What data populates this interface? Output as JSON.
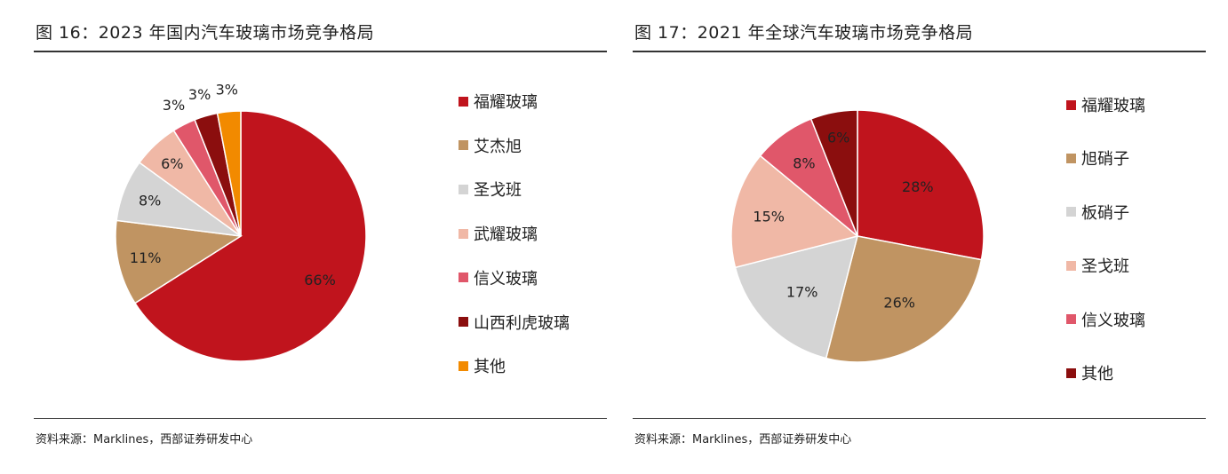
{
  "colors": {
    "red": "#c0141d",
    "tan": "#c09462",
    "gray": "#d4d4d4",
    "pink": "#f0b8a6",
    "rose": "#e0576a",
    "darkred": "#8b0e0e",
    "orange": "#f28a00"
  },
  "chart_data": [
    {
      "type": "pie",
      "title": "图 16：2023 年国内汽车玻璃市场竞争格局",
      "source": "资料来源：Marklines，西部证券研发中心",
      "legend_position": "right",
      "slices": [
        {
          "name": "福耀玻璃",
          "value": 66,
          "label": "66%",
          "color": "#c0141d",
          "label_color": "#222"
        },
        {
          "name": "艾杰旭",
          "value": 11,
          "label": "11%",
          "color": "#c09462",
          "label_color": "#222"
        },
        {
          "name": "圣戈班",
          "value": 8,
          "label": "8%",
          "color": "#d4d4d4",
          "label_color": "#222"
        },
        {
          "name": "武耀玻璃",
          "value": 6,
          "label": "6%",
          "color": "#f0b8a6",
          "label_color": "#222"
        },
        {
          "name": "信义玻璃",
          "value": 3,
          "label": "3%",
          "color": "#e0576a",
          "label_color": "#222"
        },
        {
          "name": "山西利虎玻璃",
          "value": 3,
          "label": "3%",
          "color": "#8b0e0e",
          "label_color": "#222"
        },
        {
          "name": "其他",
          "value": 3,
          "label": "3%",
          "color": "#f28a00",
          "label_color": "#222"
        }
      ]
    },
    {
      "type": "pie",
      "title": "图 17：2021 年全球汽车玻璃市场竞争格局",
      "source": "资料来源：Marklines，西部证券研发中心",
      "legend_position": "right",
      "slices": [
        {
          "name": "福耀玻璃",
          "value": 28,
          "label": "28%",
          "color": "#c0141d",
          "label_color": "#222"
        },
        {
          "name": "旭硝子",
          "value": 26,
          "label": "26%",
          "color": "#c09462",
          "label_color": "#222"
        },
        {
          "name": "板硝子",
          "value": 17,
          "label": "17%",
          "color": "#d4d4d4",
          "label_color": "#222"
        },
        {
          "name": "圣戈班",
          "value": 15,
          "label": "15%",
          "color": "#f0b8a6",
          "label_color": "#222"
        },
        {
          "name": "信义玻璃",
          "value": 8,
          "label": "8%",
          "color": "#e0576a",
          "label_color": "#222"
        },
        {
          "name": "其他",
          "value": 6,
          "label": "6%",
          "color": "#8b0e0e",
          "label_color": "#222"
        }
      ]
    }
  ]
}
